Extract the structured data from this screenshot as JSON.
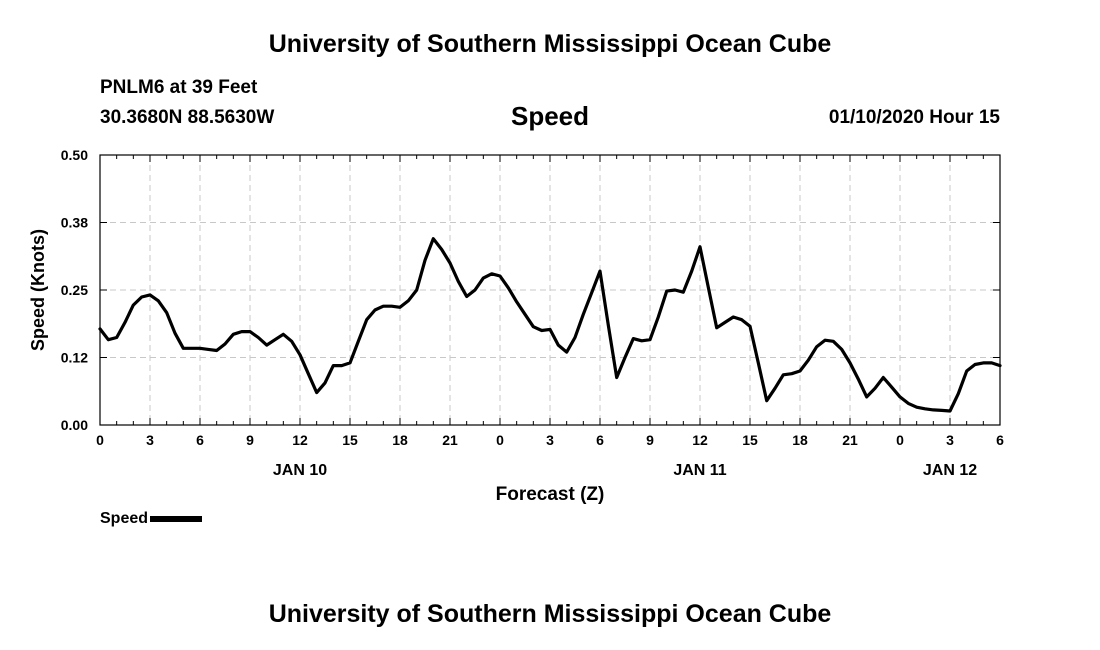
{
  "header": {
    "title": "University of Southern Mississippi Ocean Cube",
    "station": "PNLM6 at 39 Feet",
    "coords": "30.3680N 88.5630W",
    "variable": "Speed",
    "datetime": "01/10/2020 Hour 15"
  },
  "footer": {
    "title": "University of Southern Mississippi Ocean Cube"
  },
  "legend": {
    "label": "Speed"
  },
  "chart_data": {
    "type": "line",
    "title": "Speed",
    "xlabel": "Forecast (Z)",
    "ylabel": "Speed (Knots)",
    "x_range_hours": [
      0,
      54
    ],
    "ylim": [
      0,
      0.5
    ],
    "y_ticks": [
      {
        "value": 0.0,
        "label": "0.00"
      },
      {
        "value": 0.125,
        "label": "0.12"
      },
      {
        "value": 0.25,
        "label": "0.25"
      },
      {
        "value": 0.375,
        "label": "0.38"
      },
      {
        "value": 0.5,
        "label": "0.50"
      }
    ],
    "x_ticks": [
      {
        "hour": 0,
        "label": "0"
      },
      {
        "hour": 3,
        "label": "3"
      },
      {
        "hour": 6,
        "label": "6"
      },
      {
        "hour": 9,
        "label": "9"
      },
      {
        "hour": 12,
        "label": "12"
      },
      {
        "hour": 15,
        "label": "15"
      },
      {
        "hour": 18,
        "label": "18"
      },
      {
        "hour": 21,
        "label": "21"
      },
      {
        "hour": 24,
        "label": "0"
      },
      {
        "hour": 27,
        "label": "3"
      },
      {
        "hour": 30,
        "label": "6"
      },
      {
        "hour": 33,
        "label": "9"
      },
      {
        "hour": 36,
        "label": "12"
      },
      {
        "hour": 39,
        "label": "15"
      },
      {
        "hour": 42,
        "label": "18"
      },
      {
        "hour": 45,
        "label": "21"
      },
      {
        "hour": 48,
        "label": "0"
      },
      {
        "hour": 51,
        "label": "3"
      },
      {
        "hour": 54,
        "label": "6"
      }
    ],
    "date_labels": [
      {
        "hour": 12,
        "label": "JAN 10"
      },
      {
        "hour": 36,
        "label": "JAN 11"
      },
      {
        "hour": 51,
        "label": "JAN 12"
      }
    ],
    "grid": true,
    "series": [
      {
        "name": "Speed",
        "color": "#000000",
        "x": [
          0,
          0.5,
          1,
          1.5,
          2,
          2.5,
          3,
          3.5,
          4,
          4.5,
          5,
          5.5,
          6,
          6.5,
          7,
          7.5,
          8,
          8.5,
          9,
          9.5,
          10,
          10.5,
          11,
          11.5,
          12,
          12.5,
          13,
          13.5,
          14,
          14.5,
          15,
          15.5,
          16,
          16.5,
          17,
          17.5,
          18,
          18.5,
          19,
          19.5,
          20,
          20.5,
          21,
          21.5,
          22,
          22.5,
          23,
          23.5,
          24,
          24.5,
          25,
          25.5,
          26,
          26.5,
          27,
          27.5,
          28,
          28.5,
          29,
          29.5,
          30,
          30.5,
          31,
          31.5,
          32,
          32.5,
          33,
          33.5,
          34,
          34.5,
          35,
          35.5,
          36,
          36.5,
          37,
          37.5,
          38,
          38.5,
          39,
          39.5,
          40,
          40.5,
          41,
          41.5,
          42,
          42.5,
          43,
          43.5,
          44,
          44.5,
          45,
          45.5,
          46,
          46.5,
          47,
          47.5,
          48,
          48.5,
          49,
          49.5,
          50,
          50.5,
          51,
          51.5,
          52,
          52.5,
          53,
          53.5,
          54
        ],
        "values": [
          0.178,
          0.158,
          0.162,
          0.19,
          0.222,
          0.237,
          0.241,
          0.23,
          0.208,
          0.17,
          0.142,
          0.142,
          0.142,
          0.14,
          0.138,
          0.15,
          0.168,
          0.173,
          0.173,
          0.162,
          0.148,
          0.158,
          0.168,
          0.155,
          0.13,
          0.095,
          0.06,
          0.078,
          0.11,
          0.11,
          0.115,
          0.155,
          0.195,
          0.213,
          0.22,
          0.22,
          0.218,
          0.23,
          0.25,
          0.305,
          0.345,
          0.325,
          0.3,
          0.266,
          0.238,
          0.25,
          0.272,
          0.28,
          0.276,
          0.254,
          0.228,
          0.205,
          0.182,
          0.175,
          0.177,
          0.148,
          0.135,
          0.162,
          0.205,
          0.245,
          0.285,
          0.185,
          0.088,
          0.125,
          0.16,
          0.156,
          0.158,
          0.2,
          0.248,
          0.25,
          0.246,
          0.285,
          0.33,
          0.255,
          0.18,
          0.19,
          0.2,
          0.195,
          0.183,
          0.115,
          0.045,
          0.068,
          0.093,
          0.095,
          0.1,
          0.12,
          0.145,
          0.157,
          0.155,
          0.14,
          0.115,
          0.085,
          0.052,
          0.068,
          0.088,
          0.07,
          0.052,
          0.04,
          0.033,
          0.03,
          0.028,
          0.027,
          0.026,
          0.058,
          0.1,
          0.112,
          0.115,
          0.115,
          0.11
        ]
      }
    ]
  }
}
